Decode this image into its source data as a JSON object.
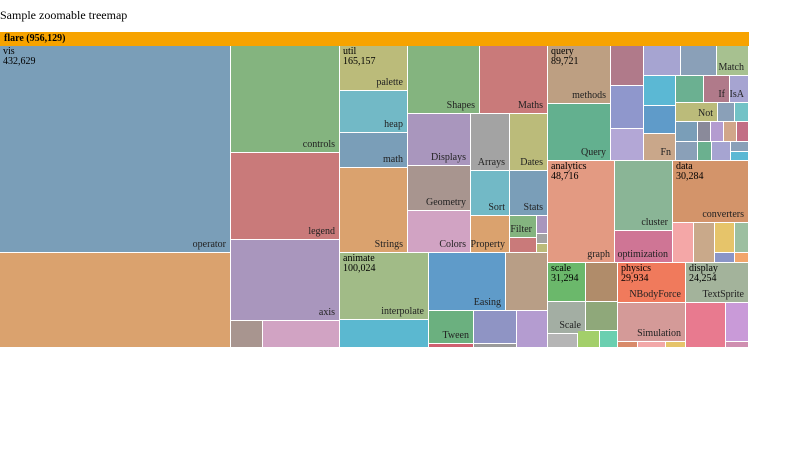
{
  "title": "Sample zoomable treemap",
  "root": {
    "label": "flare (956,129)",
    "color": "#f7a300"
  },
  "chart_data": {
    "type": "treemap",
    "total": 956129,
    "groups": [
      {
        "name": "vis",
        "value": "432,629",
        "color": "#7a9eb8",
        "leaves": [
          {
            "label": "operator",
            "color": "#7a9eb8"
          },
          {
            "label": "",
            "color": "#daa26e"
          },
          {
            "label": "controls",
            "color": "#84b47f"
          },
          {
            "label": "legend",
            "color": "#c97a7a"
          },
          {
            "label": "axis",
            "color": "#a996bd"
          },
          {
            "label": "",
            "color": "#a8958f"
          },
          {
            "label": "",
            "color": "#d1a3c3"
          }
        ]
      },
      {
        "name": "util",
        "value": "165,157",
        "color": "#bbbb7a",
        "leaves": [
          {
            "label": "palette",
            "color": "#bbbb7a"
          },
          {
            "label": "heap",
            "color": "#72b9c6"
          },
          {
            "label": "math",
            "color": "#7a9eb8"
          },
          {
            "label": "Strings",
            "color": "#daa26e"
          },
          {
            "label": "Shapes",
            "color": "#84b47f"
          },
          {
            "label": "Maths",
            "color": "#c97a7a"
          },
          {
            "label": "Displays",
            "color": "#a996bd"
          },
          {
            "label": "Arrays",
            "color": "#a3a3a3"
          },
          {
            "label": "Dates",
            "color": "#bbbb7a"
          },
          {
            "label": "Geometry",
            "color": "#a8958f"
          },
          {
            "label": "Colors",
            "color": "#d1a3c3"
          },
          {
            "label": "Sort",
            "color": "#72b9c6"
          },
          {
            "label": "Stats",
            "color": "#7a9eb8"
          },
          {
            "label": "Property",
            "color": "#daa26e"
          },
          {
            "label": "Filter",
            "color": "#84b47f"
          },
          {
            "label": "",
            "color": "#c97a7a"
          },
          {
            "label": "",
            "color": "#a996bd"
          },
          {
            "label": "",
            "color": "#a3a3a3"
          },
          {
            "label": "",
            "color": "#bbbb7a"
          }
        ]
      },
      {
        "name": "animate",
        "value": "100,024",
        "color": "#a1bb87",
        "leaves": [
          {
            "label": "interpolate",
            "color": "#a1bb87"
          },
          {
            "label": "Easing",
            "color": "#5f9bc9"
          },
          {
            "label": "",
            "color": "#b89e86"
          },
          {
            "label": "",
            "color": "#5bb8d0"
          },
          {
            "label": "Tween",
            "color": "#6bb07f"
          },
          {
            "label": "",
            "color": "#8f94c4"
          },
          {
            "label": "",
            "color": "#b49cd0"
          },
          {
            "label": "",
            "color": "#cf6070"
          },
          {
            "label": "",
            "color": "#9a9a9a"
          }
        ]
      },
      {
        "name": "query",
        "value": "89,721",
        "color": "#bd9f82",
        "leaves": [
          {
            "label": "methods",
            "color": "#bd9f82"
          },
          {
            "label": "Query",
            "color": "#63b08f"
          },
          {
            "label": "",
            "color": "#b07a8a"
          },
          {
            "label": "",
            "color": "#a6a4d1"
          },
          {
            "label": "",
            "color": "#8aa0b8"
          },
          {
            "label": "Match",
            "color": "#a7c190"
          },
          {
            "label": "",
            "color": "#8f97cc"
          },
          {
            "label": "",
            "color": "#5bb8d4"
          },
          {
            "label": "",
            "color": "#6bb091"
          },
          {
            "label": "If",
            "color": "#b07a8a"
          },
          {
            "label": "IsA",
            "color": "#a6a4d1"
          },
          {
            "label": "",
            "color": "#5f9bc9"
          },
          {
            "label": "Not",
            "color": "#bbbb7a"
          },
          {
            "label": "",
            "color": "#8aa0b8"
          },
          {
            "label": "",
            "color": "#72c2c6"
          },
          {
            "label": "",
            "color": "#7a9eb8"
          },
          {
            "label": "",
            "color": "#8a8a9a"
          },
          {
            "label": "",
            "color": "#b49cd0"
          },
          {
            "label": "",
            "color": "#d1a68a"
          },
          {
            "label": "",
            "color": "#c26e85"
          },
          {
            "label": "",
            "color": "#b3a7d6"
          },
          {
            "label": "Fn",
            "color": "#c9a78a"
          },
          {
            "label": "",
            "color": "#8aa0b8"
          },
          {
            "label": "",
            "color": "#6bb08f"
          },
          {
            "label": "",
            "color": "#a6a4d1"
          },
          {
            "label": "",
            "color": "#8aa0b8"
          },
          {
            "label": "",
            "color": "#5bb8d4"
          }
        ]
      },
      {
        "name": "analytics",
        "value": "48,716",
        "color": "#e39a82",
        "leaves": [
          {
            "label": "graph",
            "color": "#e39a82"
          },
          {
            "label": "cluster",
            "color": "#8ab596"
          },
          {
            "label": "optimization",
            "color": "#cf7595"
          }
        ]
      },
      {
        "name": "data",
        "value": "30,284",
        "color": "#d3946a",
        "leaves": [
          {
            "label": "converters",
            "color": "#d3946a"
          },
          {
            "label": "",
            "color": "#f4a7a7"
          },
          {
            "label": "",
            "color": "#c9a98a"
          },
          {
            "label": "",
            "color": "#e6c46a"
          },
          {
            "label": "",
            "color": "#9cbfa0"
          },
          {
            "label": "",
            "color": "#8a95c7"
          },
          {
            "label": "",
            "color": "#f2a66b"
          }
        ]
      },
      {
        "name": "scale",
        "value": "31,294",
        "color": "#6bb86b",
        "leaves": [
          {
            "label": "",
            "color": "#6bb86b"
          },
          {
            "label": "",
            "color": "#b08c6a"
          },
          {
            "label": "Scale",
            "color": "#a3aea3"
          },
          {
            "label": "",
            "color": "#8fa87a"
          },
          {
            "label": "",
            "color": "#b5b5b5"
          },
          {
            "label": "",
            "color": "#a3cf6a"
          },
          {
            "label": "",
            "color": "#6bcfb0"
          }
        ]
      },
      {
        "name": "physics",
        "value": "29,934",
        "color": "#f07a5c",
        "leaves": [
          {
            "label": "NBodyForce",
            "color": "#f07a5c"
          },
          {
            "label": "Simulation",
            "color": "#d49a98"
          },
          {
            "label": "",
            "color": "#d88a6a"
          },
          {
            "label": "",
            "color": "#f2a8a8"
          },
          {
            "label": "",
            "color": "#e6c46a"
          }
        ]
      },
      {
        "name": "display",
        "value": "24,254",
        "color": "#a3b39b",
        "leaves": [
          {
            "label": "TextSprite",
            "color": "#a3b39b"
          },
          {
            "label": "",
            "color": "#e87a8f"
          },
          {
            "label": "",
            "color": "#c99ad8"
          },
          {
            "label": "",
            "color": "#cf8fb0"
          }
        ]
      }
    ]
  }
}
